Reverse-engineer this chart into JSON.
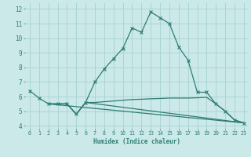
{
  "xlabel": "Humidex (Indice chaleur)",
  "bg_color": "#cce9e9",
  "grid_color": "#aad4d4",
  "line_color": "#2e7d72",
  "xlim": [
    -0.5,
    23.5
  ],
  "ylim": [
    3.8,
    12.4
  ],
  "xticks": [
    0,
    1,
    2,
    3,
    4,
    5,
    6,
    7,
    8,
    9,
    10,
    11,
    12,
    13,
    14,
    15,
    16,
    17,
    18,
    19,
    20,
    21,
    22,
    23
  ],
  "yticks": [
    4,
    5,
    6,
    7,
    8,
    9,
    10,
    11,
    12
  ],
  "curve1_x": [
    0,
    1,
    2,
    3,
    4,
    5,
    6,
    7,
    8,
    9,
    10,
    11,
    12,
    13,
    14,
    15,
    16,
    17,
    18,
    19,
    20,
    21,
    22,
    23
  ],
  "curve1_y": [
    6.4,
    5.9,
    5.5,
    5.5,
    5.5,
    4.8,
    5.6,
    7.0,
    7.9,
    8.6,
    9.3,
    10.7,
    10.4,
    11.8,
    11.4,
    11.0,
    9.4,
    8.5,
    6.3,
    6.3,
    5.5,
    5.0,
    4.4,
    4.2
  ],
  "curve2_x": [
    2,
    3,
    4,
    5,
    6,
    7,
    8,
    9,
    10,
    11,
    12,
    13,
    14,
    15,
    16,
    17,
    18,
    19,
    20,
    21,
    22,
    23
  ],
  "curve2_y": [
    5.5,
    5.5,
    5.5,
    4.8,
    5.6,
    5.6,
    5.65,
    5.7,
    5.75,
    5.8,
    5.82,
    5.85,
    5.87,
    5.9,
    5.9,
    5.9,
    5.92,
    5.95,
    5.5,
    5.0,
    4.4,
    4.2
  ],
  "curve3_x": [
    2,
    3,
    4,
    5,
    6,
    23
  ],
  "curve3_y": [
    5.5,
    5.5,
    5.5,
    4.8,
    5.6,
    4.2
  ],
  "curve4_x": [
    2,
    23
  ],
  "curve4_y": [
    5.5,
    4.2
  ]
}
